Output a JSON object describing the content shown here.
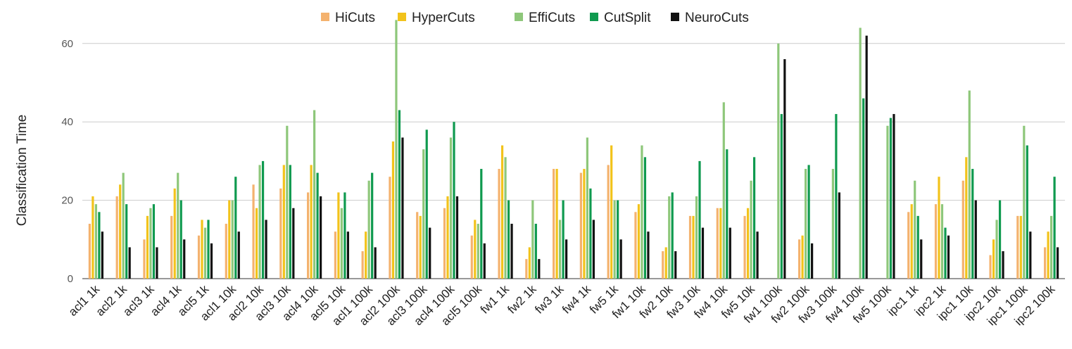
{
  "chart_data": {
    "type": "bar",
    "title": "",
    "xlabel": "",
    "ylabel": "Classification Time",
    "ylim": [
      0,
      65
    ],
    "yticks": [
      0,
      20,
      40,
      60
    ],
    "grid": true,
    "legend_position": "top-center",
    "categories": [
      "acl1 1k",
      "acl2 1k",
      "acl3 1k",
      "acl4 1k",
      "acl5 1k",
      "acl1 10k",
      "acl2 10k",
      "acl3 10k",
      "acl4 10k",
      "acl5 10k",
      "acl1 100k",
      "acl2 100k",
      "acl3 100k",
      "acl4 100k",
      "acl5 100k",
      "fw1 1k",
      "fw2 1k",
      "fw3 1k",
      "fw4 1k",
      "fw5 1k",
      "fw1 10k",
      "fw2 10k",
      "fw3 10k",
      "fw4 10k",
      "fw5 10k",
      "fw1 100k",
      "fw2 100k",
      "fw3 100k",
      "fw4 100k",
      "fw5 100k",
      "ipc1 1k",
      "ipc2 1k",
      "ipc1 10k",
      "ipc2 10k",
      "ipc1 100k",
      "ipc2 100k"
    ],
    "series": [
      {
        "name": "HiCuts",
        "color": "#f4b26e",
        "values": [
          14,
          21,
          10,
          16,
          11,
          14,
          24,
          23,
          22,
          12,
          7,
          26,
          17,
          18,
          11,
          28,
          5,
          28,
          27,
          29,
          17,
          7,
          16,
          18,
          16,
          0,
          10,
          0,
          0,
          0,
          17,
          19,
          25,
          6,
          16,
          8
        ]
      },
      {
        "name": "HyperCuts",
        "color": "#f2c31b",
        "values": [
          21,
          24,
          16,
          23,
          15,
          20,
          18,
          29,
          29,
          22,
          12,
          35,
          16,
          21,
          15,
          34,
          8,
          28,
          28,
          34,
          19,
          8,
          16,
          18,
          18,
          0,
          11,
          0,
          0,
          0,
          19,
          26,
          31,
          10,
          16,
          12
        ]
      },
      {
        "name": "EffiCuts",
        "color": "#8ec77a",
        "values": [
          19,
          27,
          18,
          27,
          13,
          20,
          29,
          39,
          43,
          18,
          25,
          66,
          33,
          36,
          14,
          31,
          20,
          15,
          36,
          20,
          34,
          21,
          21,
          45,
          25,
          60,
          28,
          28,
          64,
          39,
          25,
          19,
          48,
          15,
          39,
          16
        ]
      },
      {
        "name": "CutSplit",
        "color": "#0f9a4f",
        "values": [
          17,
          19,
          19,
          20,
          15,
          26,
          30,
          29,
          27,
          22,
          27,
          43,
          38,
          40,
          28,
          20,
          14,
          20,
          23,
          20,
          31,
          22,
          30,
          33,
          31,
          42,
          29,
          42,
          46,
          41,
          16,
          13,
          28,
          20,
          34,
          26
        ]
      },
      {
        "name": "NeuroCuts",
        "color": "#111111",
        "values": [
          12,
          8,
          8,
          10,
          9,
          12,
          15,
          18,
          21,
          12,
          8,
          36,
          13,
          21,
          9,
          14,
          5,
          10,
          15,
          10,
          12,
          7,
          13,
          13,
          12,
          56,
          9,
          22,
          62,
          42,
          10,
          11,
          20,
          7,
          12,
          8
        ]
      }
    ]
  }
}
